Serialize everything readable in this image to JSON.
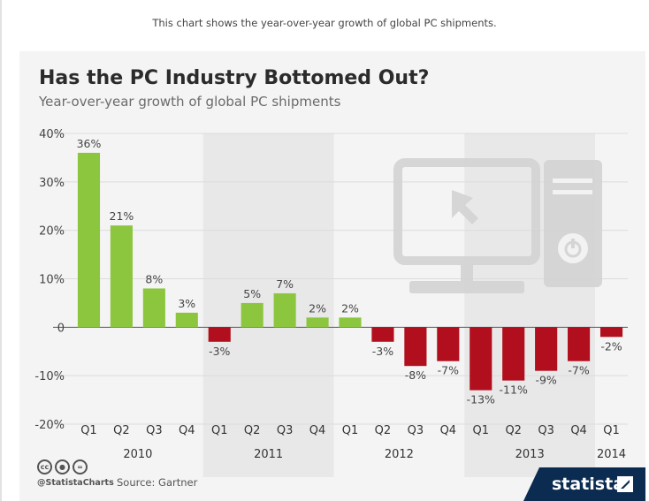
{
  "caption": "This chart shows the year-over-year growth of global PC shipments.",
  "footer": {
    "handle": "@StatistaCharts",
    "source": "Source: Gartner",
    "brand": "statista"
  },
  "icons": [
    "creative-commons-icon",
    "attribution-icon",
    "no-derivatives-icon",
    "computer-monitor-icon",
    "computer-tower-icon",
    "power-button-icon",
    "mouse-cursor-icon"
  ],
  "colors": {
    "positive": "#8cc63f",
    "negative": "#b10f1d",
    "band": "#e8e8e8",
    "card": "#f4f4f4",
    "brand": "#0b2b50"
  },
  "chart_data": {
    "type": "bar",
    "title": "Has the PC Industry Bottomed Out?",
    "subtitle": "Year-over-year growth of global PC shipments",
    "xlabel": "",
    "ylabel": "",
    "ylim": [
      -20,
      40
    ],
    "y_ticks": [
      40,
      30,
      20,
      10,
      0,
      -10,
      -20
    ],
    "y_tick_labels": [
      "40%",
      "30%",
      "20%",
      "10%",
      "0",
      "-10%",
      "-20%"
    ],
    "categories": [
      "Q1",
      "Q2",
      "Q3",
      "Q4",
      "Q1",
      "Q2",
      "Q3",
      "Q4",
      "Q1",
      "Q2",
      "Q3",
      "Q4",
      "Q1",
      "Q2",
      "Q3",
      "Q4",
      "Q1"
    ],
    "values": [
      36,
      21,
      8,
      3,
      -3,
      5,
      7,
      2,
      2,
      -3,
      -8,
      -7,
      -13,
      -11,
      -9,
      -7,
      -2
    ],
    "value_labels": [
      "36%",
      "21%",
      "8%",
      "3%",
      "-3%",
      "5%",
      "7%",
      "2%",
      "2%",
      "-3%",
      "-8%",
      "-7%",
      "-13%",
      "-11%",
      "-9%",
      "-7%",
      "-2%"
    ],
    "years": [
      {
        "label": "2010",
        "quarters": 4
      },
      {
        "label": "2011",
        "quarters": 4
      },
      {
        "label": "2012",
        "quarters": 4
      },
      {
        "label": "2013",
        "quarters": 4
      },
      {
        "label": "2014",
        "quarters": 1
      }
    ],
    "grid": true,
    "legend": "none"
  }
}
